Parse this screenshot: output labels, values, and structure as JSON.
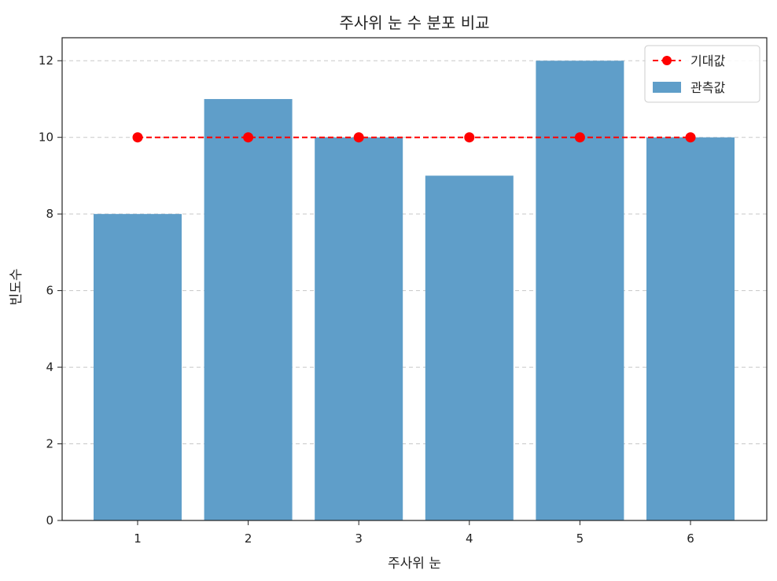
{
  "chart_data": {
    "type": "bar",
    "title": "주사위 눈 수 분포 비교",
    "xlabel": "주사위 눈",
    "ylabel": "빈도수",
    "categories": [
      "1",
      "2",
      "3",
      "4",
      "5",
      "6"
    ],
    "ylim": [
      0,
      12.6
    ],
    "yticks": [
      0,
      2,
      4,
      6,
      8,
      10,
      12
    ],
    "grid": "y-dashed",
    "legend_position": "top-right",
    "series": [
      {
        "name": "관측값",
        "type": "bar",
        "color": "#5f9ec9",
        "values": [
          8,
          11,
          10,
          9,
          12,
          10
        ]
      },
      {
        "name": "기대값",
        "type": "line",
        "style": "dashed",
        "marker": "circle",
        "color": "#ff0000",
        "values": [
          10,
          10,
          10,
          10,
          10,
          10
        ]
      }
    ]
  }
}
